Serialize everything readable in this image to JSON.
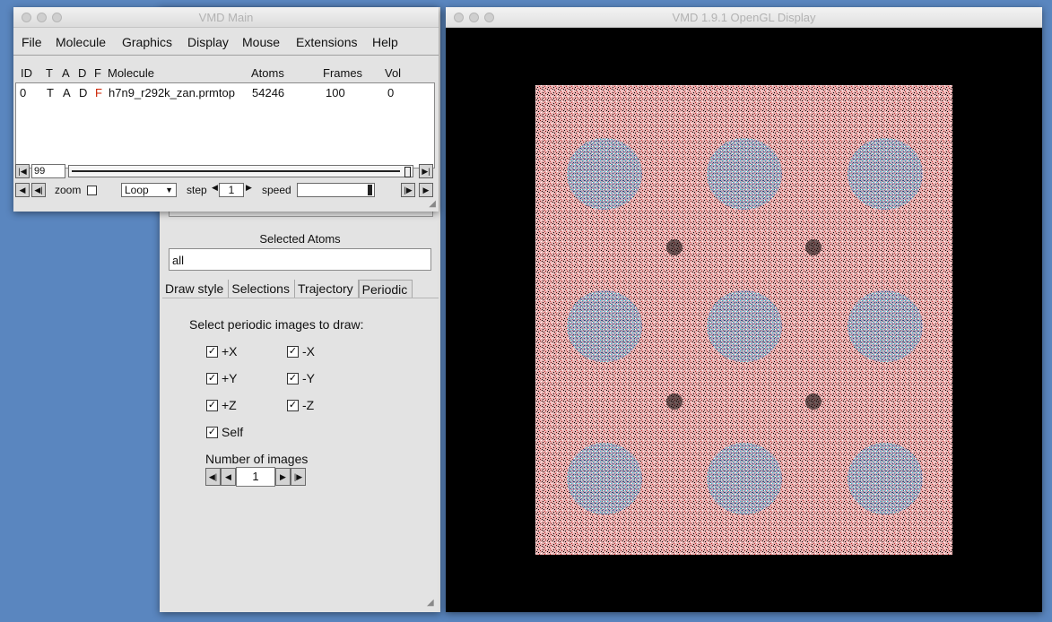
{
  "main_window": {
    "title": "VMD Main",
    "menu": [
      "File",
      "Molecule",
      "Graphics",
      "Display",
      "Mouse",
      "Extensions",
      "Help"
    ],
    "columns": {
      "id": "ID",
      "t": "T",
      "a": "A",
      "d": "D",
      "f": "F",
      "molecule": "Molecule",
      "atoms": "Atoms",
      "frames": "Frames",
      "vol": "Vol"
    },
    "molecules": [
      {
        "id": "0",
        "t": "T",
        "a": "A",
        "d": "D",
        "f": "F",
        "name": "h7n9_r292k_zan.prmtop",
        "atoms": "54246",
        "frames": "100",
        "vol": "0"
      }
    ],
    "animation": {
      "frame": "99",
      "zoom_label": "zoom",
      "loop_mode": "Loop",
      "step_label": "step",
      "step_value": "1",
      "speed_label": "speed"
    },
    "colors": {
      "f_flag": "#cc2200"
    }
  },
  "reps_window": {
    "selected_atoms_label": "Selected Atoms",
    "selected_atoms_value": "all",
    "tabs": [
      "Draw style",
      "Selections",
      "Trajectory",
      "Periodic"
    ],
    "active_tab": "Periodic",
    "periodic": {
      "prompt": "Select periodic images to draw:",
      "options": [
        {
          "label": "+X",
          "checked": true
        },
        {
          "label": "-X",
          "checked": true
        },
        {
          "label": "+Y",
          "checked": true
        },
        {
          "label": "-Y",
          "checked": true
        },
        {
          "label": "+Z",
          "checked": true
        },
        {
          "label": "-Z",
          "checked": true
        },
        {
          "label": "Self",
          "checked": true
        }
      ],
      "num_images_label": "Number of images",
      "num_images_value": "1"
    }
  },
  "display_window": {
    "title": "VMD 1.9.1 OpenGL Display",
    "background": "#000000",
    "image_grid": "3x3",
    "colors": {
      "water": "#e8a0a0",
      "protein": "#40c8d0"
    }
  }
}
